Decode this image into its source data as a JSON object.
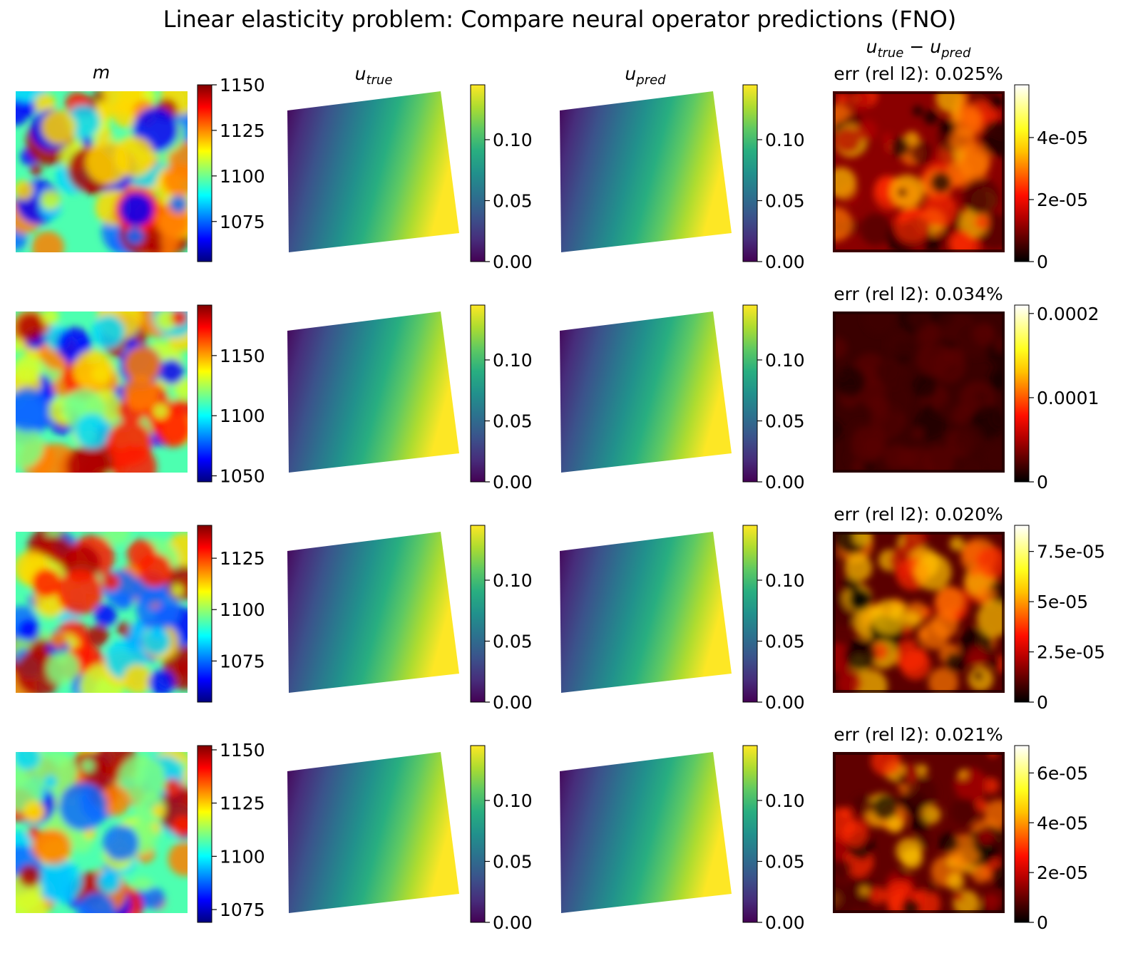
{
  "chart_data": {
    "type": "heatmap",
    "title": "Linear elasticity problem: Compare neural operator predictions (FNO)",
    "columns": [
      {
        "key": "m",
        "base": "m",
        "sub": "",
        "colormap": "jet"
      },
      {
        "key": "u_true",
        "base": "u",
        "sub": "true",
        "colormap": "viridis"
      },
      {
        "key": "u_pred",
        "base": "u",
        "sub": "pred",
        "colormap": "viridis"
      },
      {
        "key": "diff",
        "base": "u",
        "sub": "true",
        "minus": "−",
        "base2": "u",
        "sub2": "pred",
        "colormap": "hot"
      }
    ],
    "rows": [
      {
        "m": {
          "range": [
            1053,
            1150
          ],
          "ticks": [
            "1075",
            "1100",
            "1125",
            "1150"
          ],
          "tick_values": [
            1075,
            1100,
            1125,
            1150
          ]
        },
        "u": {
          "range": [
            0,
            0.145
          ],
          "ticks": [
            "0.00",
            "0.05",
            "0.10"
          ],
          "tick_values": [
            0,
            0.05,
            0.1
          ]
        },
        "u_pred": {
          "range": [
            0,
            0.145
          ],
          "ticks": [
            "0.00",
            "0.05",
            "0.10"
          ],
          "tick_values": [
            0,
            0.05,
            0.1
          ]
        },
        "err_label": "err (rel l2): 0.025%",
        "diff": {
          "range": [
            0,
            5.7e-05
          ],
          "ticks": [
            "0",
            "2e-05",
            "4e-05"
          ],
          "tick_values": [
            0,
            2e-05,
            4e-05
          ]
        }
      },
      {
        "m": {
          "range": [
            1045,
            1192
          ],
          "ticks": [
            "1050",
            "1100",
            "1150"
          ],
          "tick_values": [
            1050,
            1100,
            1150
          ]
        },
        "u": {
          "range": [
            0,
            0.145
          ],
          "ticks": [
            "0.00",
            "0.05",
            "0.10"
          ],
          "tick_values": [
            0,
            0.05,
            0.1
          ]
        },
        "u_pred": {
          "range": [
            0,
            0.145
          ],
          "ticks": [
            "0.00",
            "0.05",
            "0.10"
          ],
          "tick_values": [
            0,
            0.05,
            0.1
          ]
        },
        "err_label": "err (rel l2): 0.034%",
        "diff": {
          "range": [
            0,
            0.00021
          ],
          "ticks": [
            "0",
            "0.0001",
            "0.0002"
          ],
          "tick_values": [
            0,
            0.0001,
            0.0002
          ]
        }
      },
      {
        "m": {
          "range": [
            1055,
            1141
          ],
          "ticks": [
            "1075",
            "1100",
            "1125"
          ],
          "tick_values": [
            1075,
            1100,
            1125
          ]
        },
        "u": {
          "range": [
            0,
            0.145
          ],
          "ticks": [
            "0.00",
            "0.05",
            "0.10"
          ],
          "tick_values": [
            0,
            0.05,
            0.1
          ]
        },
        "u_pred": {
          "range": [
            0,
            0.145
          ],
          "ticks": [
            "0.00",
            "0.05",
            "0.10"
          ],
          "tick_values": [
            0,
            0.05,
            0.1
          ]
        },
        "err_label": "err (rel l2): 0.020%",
        "diff": {
          "range": [
            0,
            8.8e-05
          ],
          "ticks": [
            "0",
            "2.5e-05",
            "5e-05",
            "7.5e-05"
          ],
          "tick_values": [
            0,
            2.5e-05,
            5e-05,
            7.5e-05
          ]
        }
      },
      {
        "m": {
          "range": [
            1069,
            1152
          ],
          "ticks": [
            "1075",
            "1100",
            "1125",
            "1150"
          ],
          "tick_values": [
            1075,
            1100,
            1125,
            1150
          ]
        },
        "u": {
          "range": [
            0,
            0.145
          ],
          "ticks": [
            "0.00",
            "0.05",
            "0.10"
          ],
          "tick_values": [
            0,
            0.05,
            0.1
          ]
        },
        "u_pred": {
          "range": [
            0,
            0.145
          ],
          "ticks": [
            "0.00",
            "0.05",
            "0.10"
          ],
          "tick_values": [
            0,
            0.05,
            0.1
          ]
        },
        "err_label": "err (rel l2): 0.021%",
        "diff": {
          "range": [
            0,
            7.1e-05
          ],
          "ticks": [
            "0",
            "2e-05",
            "4e-05",
            "6e-05"
          ],
          "tick_values": [
            0,
            2e-05,
            4e-05,
            6e-05
          ]
        }
      }
    ]
  }
}
